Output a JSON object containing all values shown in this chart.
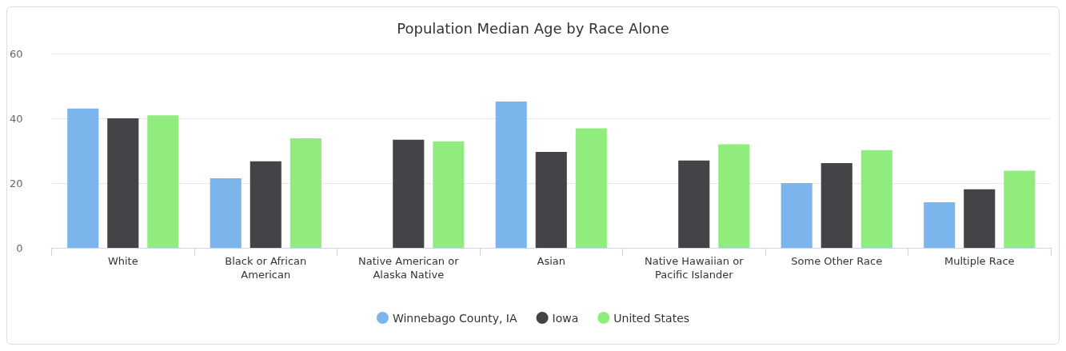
{
  "chart_data": {
    "type": "bar",
    "title": "Population Median Age by Race Alone",
    "categories": [
      "White",
      "Black or African American",
      "Native American or Alaska Native",
      "Asian",
      "Native Hawaiian or Pacific Islander",
      "Some Other Race",
      "Multiple Race"
    ],
    "series": [
      {
        "name": "Winnebago County, IA",
        "color": "#7cb5ec",
        "values": [
          43.0,
          21.5,
          null,
          45.2,
          null,
          20.0,
          14.1
        ]
      },
      {
        "name": "Iowa",
        "color": "#434348",
        "values": [
          40.0,
          26.7,
          33.4,
          29.6,
          27.0,
          26.2,
          18.1
        ]
      },
      {
        "name": "United States",
        "color": "#90ed7d",
        "values": [
          40.9,
          33.8,
          32.9,
          36.9,
          32.0,
          30.2,
          23.8
        ]
      }
    ],
    "ylim": [
      0,
      60
    ],
    "yticks": [
      0,
      20,
      40,
      60
    ],
    "grid": "y",
    "legend": "bottom"
  }
}
